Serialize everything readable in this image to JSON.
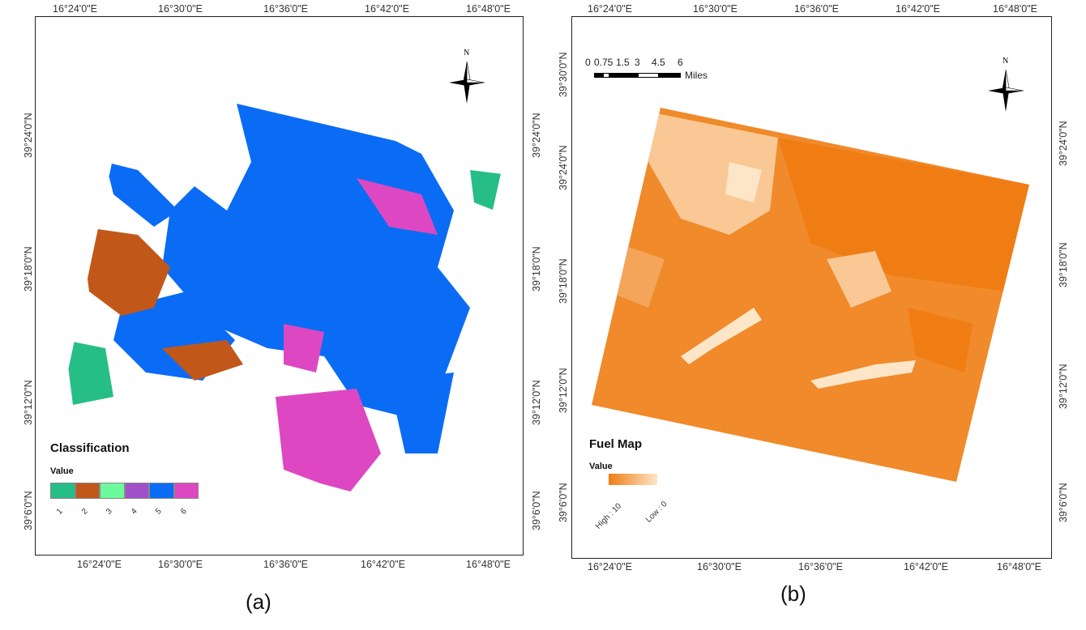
{
  "panel_a": {
    "caption": "(a)",
    "top_ticks": [
      "16°24'0\"E",
      "16°30'0\"E",
      "16°36'0\"E",
      "16°42'0\"E",
      "16°48'0\"E"
    ],
    "bottom_ticks": [
      "16°24'0\"E",
      "16°30'0\"E",
      "16°36'0\"E",
      "16°42'0\"E",
      "16°48'0\"E"
    ],
    "left_ticks": [
      "39°24'0\"N",
      "39°18'0\"N",
      "39°12'0\"N",
      "39°6'0\"N"
    ],
    "right_ticks": [
      "39°24'0\"N",
      "39°18'0\"N",
      "39°12'0\"N",
      "39°6'0\"N"
    ],
    "north_label": "N",
    "legend": {
      "title": "Classification",
      "subtitle": "Value",
      "classes": [
        {
          "label": "1",
          "color": "#26be86"
        },
        {
          "label": "2",
          "color": "#c2571a"
        },
        {
          "label": "3",
          "color": "#6bfb9c"
        },
        {
          "label": "4",
          "color": "#a050c8"
        },
        {
          "label": "5",
          "color": "#0a6cf5"
        },
        {
          "label": "6",
          "color": "#dd48c2"
        }
      ]
    }
  },
  "panel_b": {
    "caption": "(b)",
    "top_ticks": [
      "16°24'0\"E",
      "16°30'0\"E",
      "16°36'0\"E",
      "16°42'0\"E",
      "16°48'0\"E"
    ],
    "bottom_ticks": [
      "16°24'0\"E",
      "16°30'0\"E",
      "16°36'0\"E",
      "16°42'0\"E",
      "16°48'0\"E"
    ],
    "left_ticks": [
      "39°30'0\"N",
      "39°24'0\"N",
      "39°18'0\"N",
      "39°12'0\"N",
      "39°6'0\"N"
    ],
    "right_ticks": [
      "39°24'0\"N",
      "39°18'0\"N",
      "39°12'0\"N",
      "39°6'0\"N"
    ],
    "north_label": "N",
    "scale_bar": {
      "labels": [
        "0",
        "0.75",
        "1.5",
        "3",
        "4.5",
        "6"
      ],
      "unit": "Miles"
    },
    "legend": {
      "title": "Fuel Map",
      "subtitle": "Value",
      "high_label": "High : 10",
      "low_label": "Low : 0",
      "high_color": "#f07d14",
      "low_color": "#fde6c8"
    }
  }
}
